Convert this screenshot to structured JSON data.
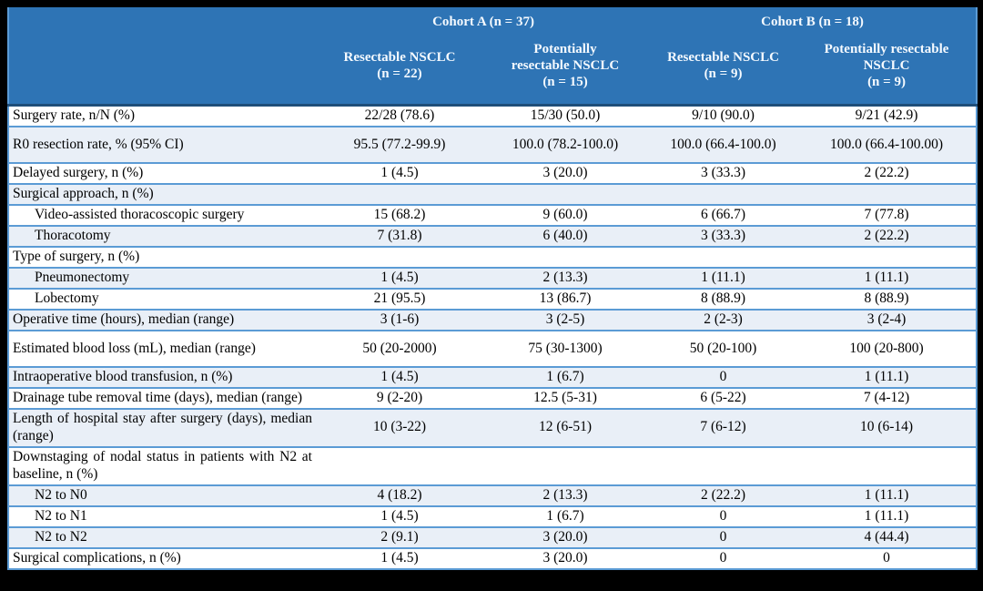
{
  "colors": {
    "header_bg": "#2E74B5",
    "header_text": "#F5FAFF",
    "header_bottom_border": "#1F4E79",
    "row_border": "#5B9BD5",
    "stripe_bg": "#E9EFF7",
    "frame_bg": "#000000",
    "body_text": "#000000"
  },
  "table": {
    "cohort_a_label": "Cohort A (n = 37)",
    "cohort_b_label": "Cohort B (n = 18)",
    "column_headers": [
      "Resectable NSCLC\n(n = 22)",
      "Potentially\nresectable NSCLC\n(n = 15)",
      "Resectable NSCLC\n(n = 9)",
      "Potentially resectable\nNSCLC\n(n = 9)"
    ],
    "rows": [
      {
        "label": "Surgery rate, n/N (%)",
        "indent": false,
        "tall": false,
        "values": [
          "22/28 (78.6)",
          "15/30 (50.0)",
          "9/10 (90.0)",
          "9/21 (42.9)"
        ]
      },
      {
        "label": "R0 resection rate, % (95% CI)",
        "indent": false,
        "tall": true,
        "values": [
          "95.5 (77.2-99.9)",
          "100.0 (78.2-100.0)",
          "100.0 (66.4-100.0)",
          "100.0 (66.4-100.00)"
        ]
      },
      {
        "label": "Delayed surgery, n (%)",
        "indent": false,
        "tall": false,
        "values": [
          "1 (4.5)",
          "3 (20.0)",
          "3 (33.3)",
          "2 (22.2)"
        ]
      },
      {
        "label": "Surgical approach, n (%)",
        "indent": false,
        "tall": false,
        "values": [
          "",
          "",
          "",
          ""
        ]
      },
      {
        "label": "Video-assisted thoracoscopic surgery",
        "indent": true,
        "tall": false,
        "values": [
          "15 (68.2)",
          "9 (60.0)",
          "6 (66.7)",
          "7 (77.8)"
        ]
      },
      {
        "label": "Thoracotomy",
        "indent": true,
        "tall": false,
        "values": [
          "7 (31.8)",
          "6 (40.0)",
          "3 (33.3)",
          "2 (22.2)"
        ]
      },
      {
        "label": "Type of surgery, n (%)",
        "indent": false,
        "tall": false,
        "values": [
          "",
          "",
          "",
          ""
        ]
      },
      {
        "label": "Pneumonectomy",
        "indent": true,
        "tall": false,
        "values": [
          "1 (4.5)",
          "2 (13.3)",
          "1 (11.1)",
          "1 (11.1)"
        ]
      },
      {
        "label": "Lobectomy",
        "indent": true,
        "tall": false,
        "values": [
          "21 (95.5)",
          "13 (86.7)",
          "8 (88.9)",
          "8 (88.9)"
        ]
      },
      {
        "label": "Operative time (hours), median (range)",
        "indent": false,
        "tall": false,
        "values": [
          "3 (1-6)",
          "3 (2-5)",
          "2 (2-3)",
          "3 (2-4)"
        ]
      },
      {
        "label": "Estimated blood loss (mL), median (range)",
        "indent": false,
        "tall": true,
        "values": [
          "50 (20-2000)",
          "75 (30-1300)",
          "50 (20-100)",
          "100 (20-800)"
        ]
      },
      {
        "label": "Intraoperative blood transfusion, n (%)",
        "indent": false,
        "tall": false,
        "values": [
          "1 (4.5)",
          "1 (6.7)",
          "0",
          "1 (11.1)"
        ]
      },
      {
        "label": "Drainage tube removal time (days), median (range)",
        "indent": false,
        "tall": false,
        "values": [
          "9 (2-20)",
          "12.5 (5-31)",
          "6 (5-22)",
          "7 (4-12)"
        ]
      },
      {
        "label": "Length of hospital stay after surgery (days), median (range)",
        "indent": false,
        "tall": false,
        "values": [
          "10 (3-22)",
          "12 (6-51)",
          "7 (6-12)",
          "10 (6-14)"
        ]
      },
      {
        "label": "Downstaging of nodal status in patients with N2 at baseline, n (%)",
        "indent": false,
        "tall": false,
        "values": [
          "",
          "",
          "",
          ""
        ]
      },
      {
        "label": "N2 to N0",
        "indent": true,
        "tall": false,
        "values": [
          "4 (18.2)",
          "2 (13.3)",
          "2 (22.2)",
          "1 (11.1)"
        ]
      },
      {
        "label": "N2 to N1",
        "indent": true,
        "tall": false,
        "values": [
          "1 (4.5)",
          "1 (6.7)",
          "0",
          "1 (11.1)"
        ]
      },
      {
        "label": "N2 to N2",
        "indent": true,
        "tall": false,
        "values": [
          "2 (9.1)",
          "3 (20.0)",
          "0",
          "4 (44.4)"
        ]
      },
      {
        "label": "Surgical complications, n (%)",
        "indent": false,
        "tall": false,
        "values": [
          "1 (4.5)",
          "3 (20.0)",
          "0",
          "0"
        ]
      }
    ]
  }
}
